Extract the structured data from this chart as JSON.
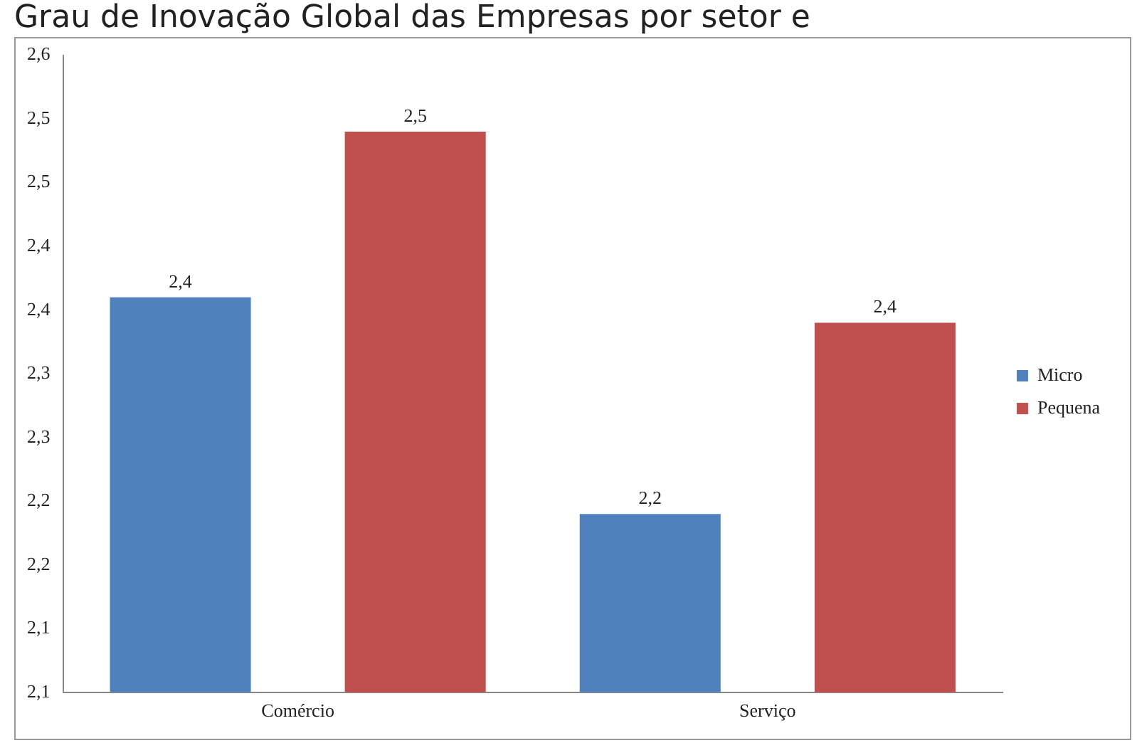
{
  "chart_data": {
    "type": "bar",
    "title": "Grau de Inovação Global das Empresas por setor e",
    "categories": [
      "Comércio",
      "Serviço"
    ],
    "series": [
      {
        "name": "Micro",
        "color": "#4f81bd",
        "values": [
          2.41,
          2.24
        ],
        "value_labels": [
          "2,4",
          "2,2"
        ]
      },
      {
        "name": "Pequena",
        "color": "#c0504d",
        "values": [
          2.54,
          2.39
        ],
        "value_labels": [
          "2,5",
          "2,4"
        ]
      }
    ],
    "ylim": [
      2.1,
      2.6
    ],
    "yticks": [
      {
        "value": 2.1,
        "label": "2,1"
      },
      {
        "value": 2.15,
        "label": "2,1"
      },
      {
        "value": 2.2,
        "label": "2,2"
      },
      {
        "value": 2.25,
        "label": "2,2"
      },
      {
        "value": 2.3,
        "label": "2,3"
      },
      {
        "value": 2.35,
        "label": "2,3"
      },
      {
        "value": 2.4,
        "label": "2,4"
      },
      {
        "value": 2.45,
        "label": "2,4"
      },
      {
        "value": 2.5,
        "label": "2,5"
      },
      {
        "value": 2.55,
        "label": "2,5"
      },
      {
        "value": 2.6,
        "label": "2,6"
      }
    ],
    "legend": "right",
    "grid": false
  }
}
